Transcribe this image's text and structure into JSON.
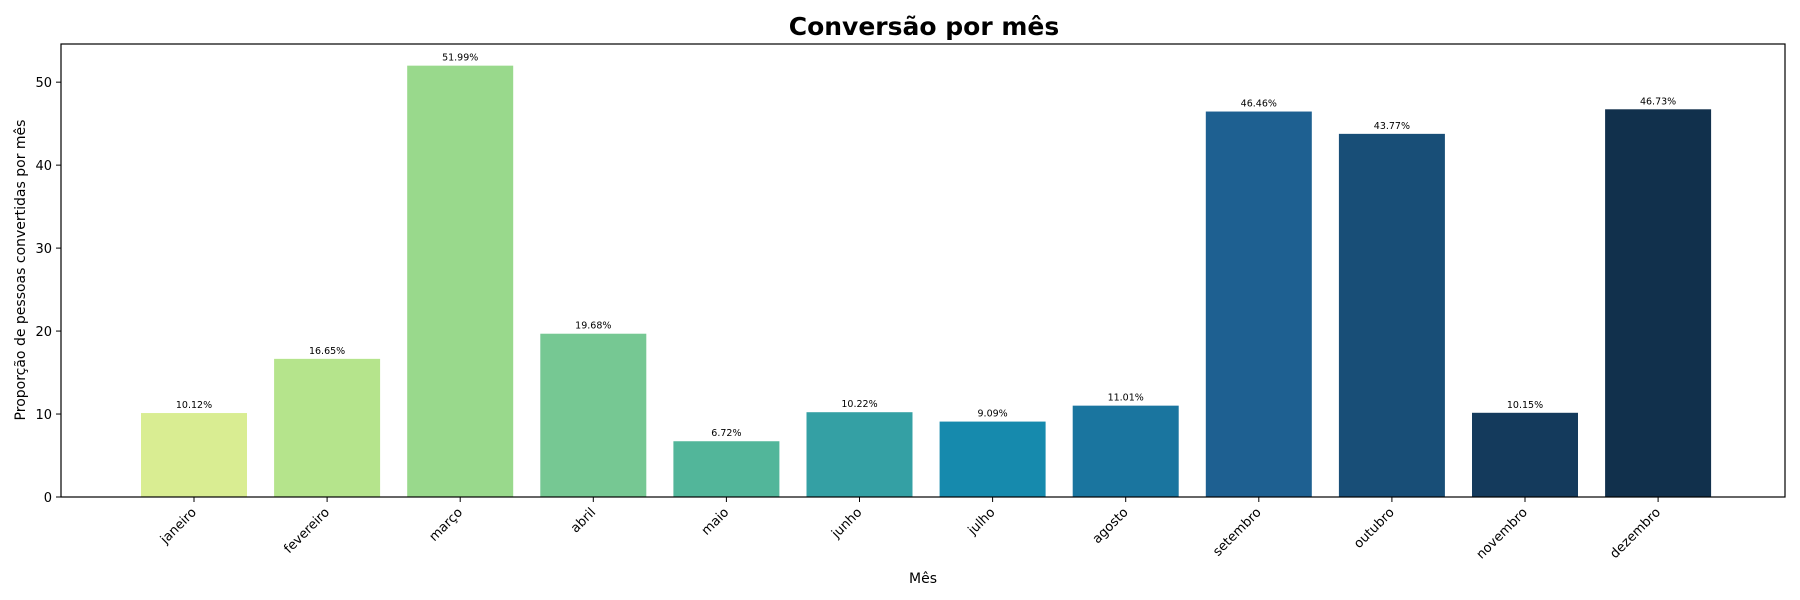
{
  "chart_data": {
    "type": "bar",
    "title": "Conversão por mês",
    "xlabel": "Mês",
    "ylabel": "Proporção de pessoas convertidas por mês",
    "ylim": [
      0,
      54.6
    ],
    "yticks": [
      0,
      10,
      20,
      30,
      40,
      50
    ],
    "grid": false,
    "categories": [
      "janeiro",
      "fevereiro",
      "março",
      "abril",
      "maio",
      "junho",
      "julho",
      "agosto",
      "setembro",
      "outubro",
      "novembro",
      "dezembro"
    ],
    "values": [
      10.12,
      16.65,
      51.99,
      19.68,
      6.72,
      10.22,
      9.09,
      11.01,
      46.46,
      43.77,
      10.15,
      46.73
    ],
    "data_labels": [
      "10.12%",
      "16.65%",
      "51.99%",
      "19.68%",
      "6.72%",
      "10.22%",
      "9.09%",
      "11.01%",
      "46.46%",
      "43.77%",
      "10.15%",
      "46.73%"
    ],
    "colors": [
      "#d9ed92",
      "#b5e48c",
      "#99d98c",
      "#76c893",
      "#52b69a",
      "#34a0a4",
      "#168aad",
      "#1a759f",
      "#1e6091",
      "#184e77",
      "#143a5c",
      "#11304c"
    ]
  }
}
